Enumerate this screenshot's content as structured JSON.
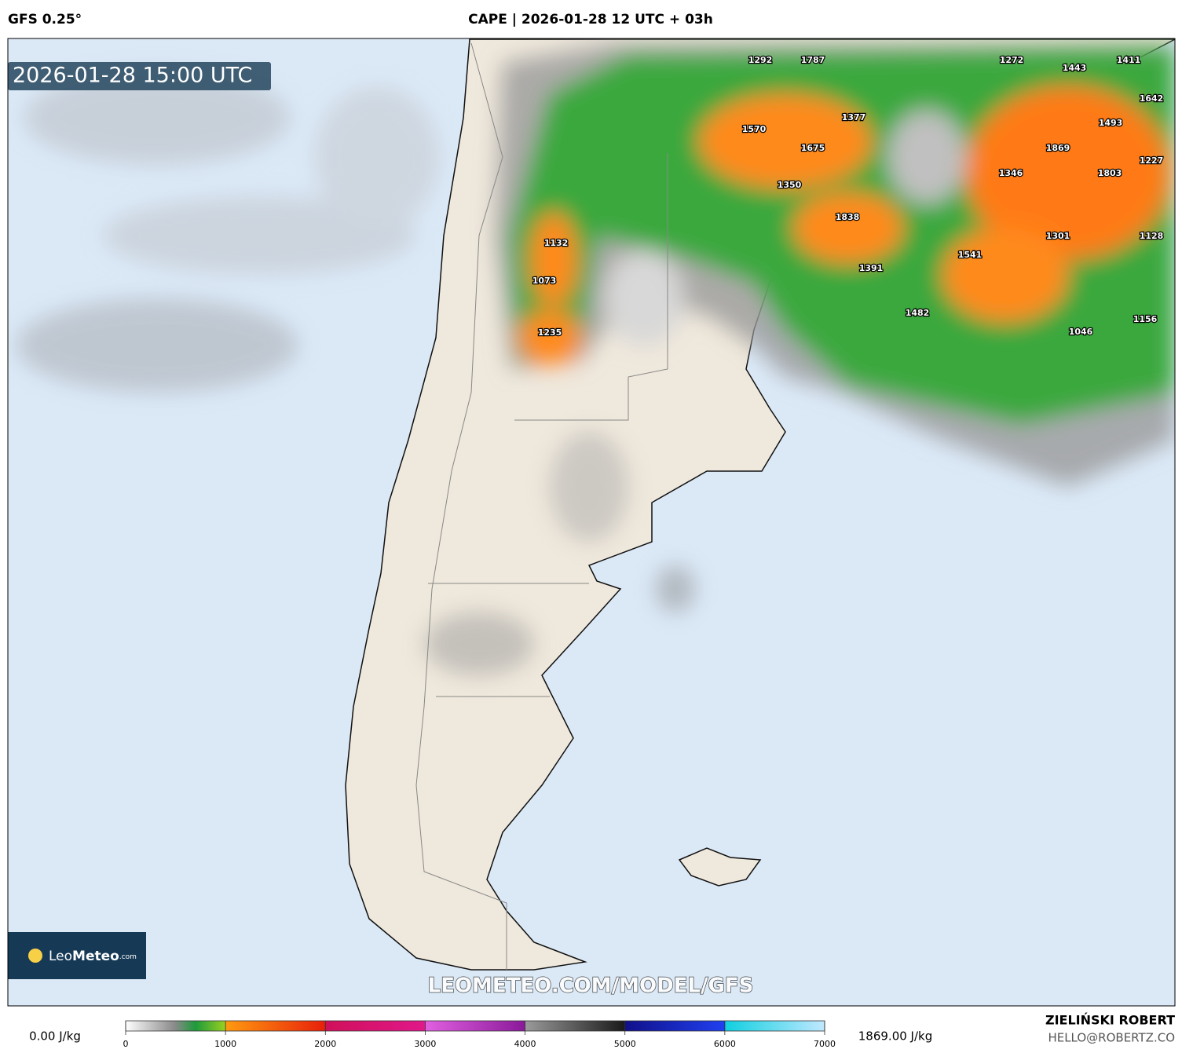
{
  "header": {
    "model": "GFS 0.25°",
    "title": "CAPE | 2026-01-28 12 UTC + 03h"
  },
  "timestamp": "2026-01-28 15:00 UTC",
  "map": {
    "cape_labels": [
      1272,
      1292,
      1787,
      1443,
      1411,
      1642,
      1377,
      1570,
      1493,
      1675,
      1869,
      1227,
      1346,
      1803,
      1350,
      1838,
      1132,
      1301,
      1128,
      1541,
      1391,
      1073,
      1482,
      1156,
      1046,
      1235
    ]
  },
  "watermark": "LEOMETEO.COM/MODEL/GFS",
  "logo": {
    "light": "Leo",
    "bold": "Meteo",
    "suffix": ".com"
  },
  "colorbar": {
    "min_label": "0.00 J/kg",
    "max_label": "1869.00 J/kg",
    "ticks": [
      0,
      1000,
      2000,
      3000,
      4000,
      5000,
      6000,
      7000
    ]
  },
  "credit": {
    "author": "ZIELIŃSKI ROBERT",
    "email": "HELLO@ROBERTZ.CO"
  }
}
